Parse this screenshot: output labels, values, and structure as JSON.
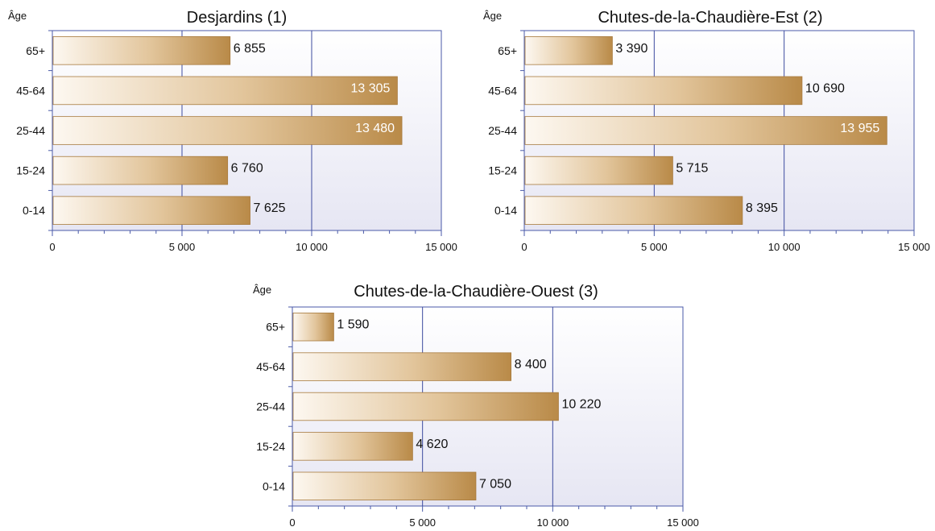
{
  "age_axis_label": "Âge",
  "colors": {
    "bar_start": "#fdf8f1",
    "bar_mid": "#e2c59b",
    "bar_end": "#b98a48",
    "bar_stroke": "#a77a3d",
    "axis": "#4a5aa8",
    "gridline": "#3d4b9f",
    "plot_bg_top": "#ffffff",
    "plot_bg_bottom": "#e6e6f3",
    "label_dark": "#111111",
    "label_light": "#ffffff"
  },
  "chart_data": [
    {
      "type": "bar",
      "orientation": "horizontal",
      "title": "Desjardins (1)",
      "categories": [
        "65+",
        "45-64",
        "25-44",
        "15-24",
        "0-14"
      ],
      "values": [
        6855,
        13305,
        13480,
        6760,
        7625
      ],
      "value_labels": [
        "6 855",
        "13 305",
        "13 480",
        "6 760",
        "7 625"
      ],
      "xlim": [
        0,
        15000
      ],
      "ticks": [
        0,
        5000,
        10000,
        15000
      ],
      "tick_labels": [
        "0",
        "5 000",
        "10 000",
        "15 000"
      ],
      "grid": true
    },
    {
      "type": "bar",
      "orientation": "horizontal",
      "title": "Chutes-de-la-Chaudière-Est (2)",
      "categories": [
        "65+",
        "45-64",
        "25-44",
        "15-24",
        "0-14"
      ],
      "values": [
        3390,
        10690,
        13955,
        5715,
        8395
      ],
      "value_labels": [
        "3 390",
        "10 690",
        "13 955",
        "5 715",
        "8 395"
      ],
      "xlim": [
        0,
        15000
      ],
      "ticks": [
        0,
        5000,
        10000,
        15000
      ],
      "tick_labels": [
        "0",
        "5 000",
        "10 000",
        "15 000"
      ],
      "grid": true
    },
    {
      "type": "bar",
      "orientation": "horizontal",
      "title": "Chutes-de-la-Chaudière-Ouest (3)",
      "categories": [
        "65+",
        "45-64",
        "25-44",
        "15-24",
        "0-14"
      ],
      "values": [
        1590,
        8400,
        10220,
        4620,
        7050
      ],
      "value_labels": [
        "1 590",
        "8 400",
        "10 220",
        "4 620",
        "7 050"
      ],
      "xlim": [
        0,
        15000
      ],
      "ticks": [
        0,
        5000,
        10000,
        15000
      ],
      "tick_labels": [
        "0",
        "5 000",
        "10 000",
        "15 000"
      ],
      "grid": true
    }
  ]
}
